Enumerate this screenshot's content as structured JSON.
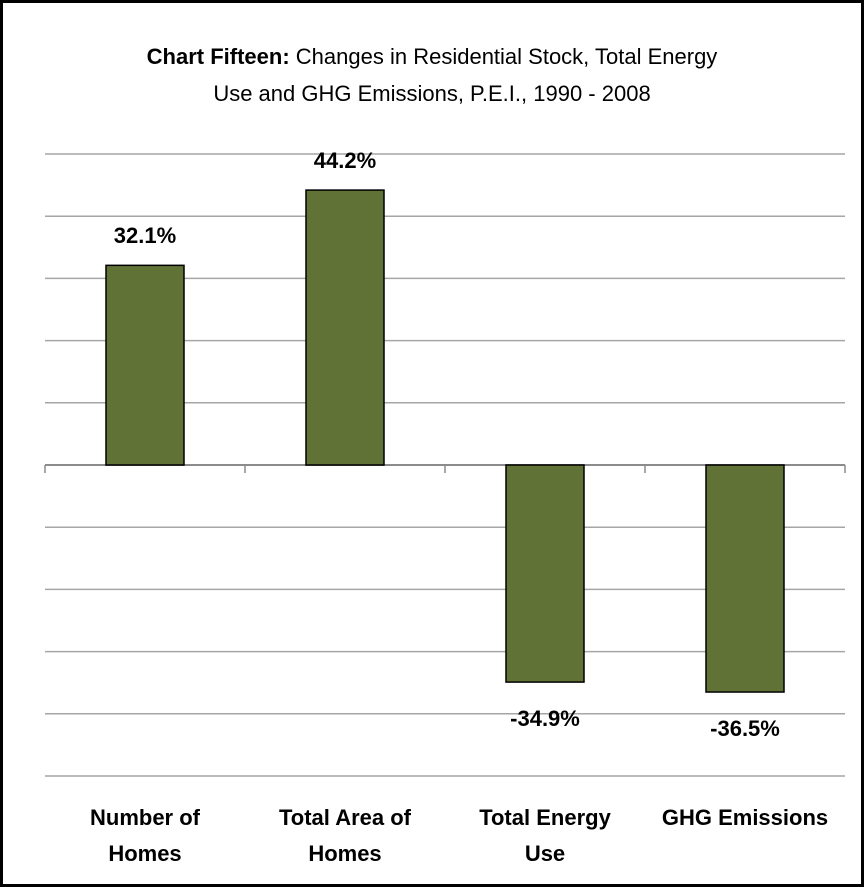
{
  "chart_data": {
    "type": "bar",
    "title_label": "Chart Fifteen:",
    "title": "Changes in Residential Stock, Total Energy Use and GHG Emissions, P.E.I., 1990 - 2008",
    "categories": [
      "Number of Homes",
      "Total Area of Homes",
      "Total Energy Use",
      "GHG Emissions"
    ],
    "values": [
      32.1,
      44.2,
      -34.9,
      -36.5
    ],
    "value_labels": [
      "32.1%",
      "44.2%",
      "-34.9%",
      "-36.5%"
    ],
    "color": "#617236",
    "ylim": [
      -50,
      50
    ],
    "yticks": [
      -50,
      -40,
      -30,
      -20,
      -10,
      0,
      10,
      20,
      30,
      40,
      50
    ],
    "grid": true
  }
}
